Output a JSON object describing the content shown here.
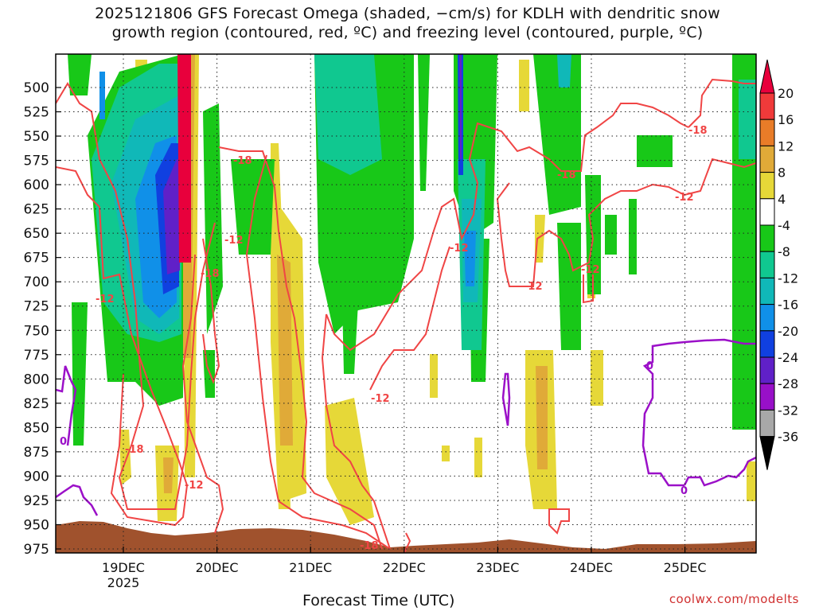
{
  "chart_data": {
    "type": "heatmap",
    "title_line1": "2025121806 GFS Forecast Omega (shaded, −cm/s) for KDLH with dendritic snow",
    "title_line2": "growth region (contoured, red, ºC) and freezing level (contoured, purple, ºC)",
    "xlabel": "Forecast Time (UTC)",
    "credit": "coolwx.com/modelts",
    "x_ticks": [
      "19DEC",
      "20DEC",
      "21DEC",
      "22DEC",
      "23DEC",
      "24DEC",
      "25DEC"
    ],
    "x_tick_sublabel": "2025",
    "y_ticks": [
      500,
      525,
      550,
      575,
      600,
      625,
      650,
      675,
      700,
      725,
      750,
      775,
      800,
      825,
      850,
      875,
      900,
      925,
      950,
      975
    ],
    "colorbar": {
      "labels": [
        20,
        16,
        12,
        8,
        4,
        -4,
        -8,
        -12,
        -16,
        -20,
        -24,
        -28,
        -32,
        -36
      ],
      "colors": [
        "#e8003c",
        "#f03a3a",
        "#e87c28",
        "#e0aa38",
        "#e6d838",
        "#ffffff",
        "#18c818",
        "#10c890",
        "#10b8b8",
        "#1090e8",
        "#1040e0",
        "#6020c8",
        "#9810c8",
        "#a8a8a8",
        "#000000"
      ]
    },
    "contour_labels": {
      "dgz": "-12",
      "dgz_cold": "-18",
      "freezing": "0"
    }
  }
}
